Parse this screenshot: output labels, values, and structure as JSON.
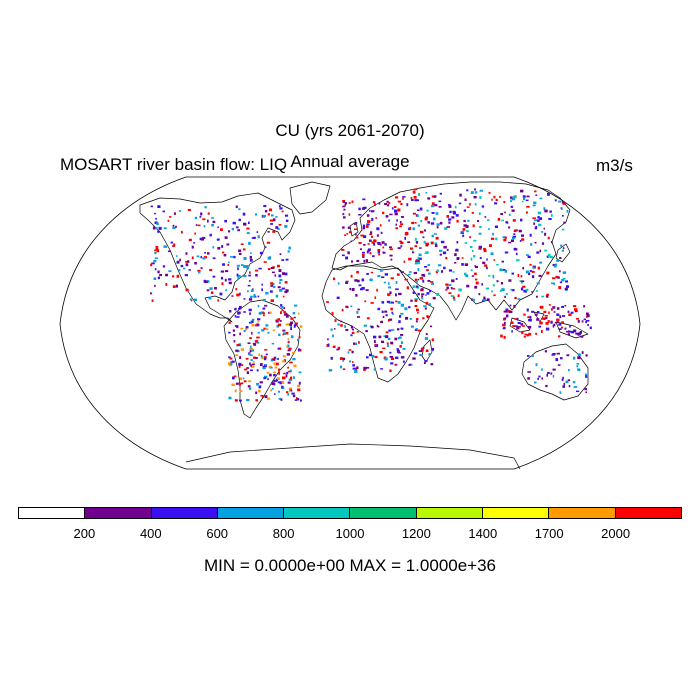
{
  "title": "CU (yrs 2061-2070)",
  "left_label": "MOSART river basin flow: LIQ",
  "subtitle": "Annual average",
  "units": "m3/s",
  "stats": "MIN = 0.0000e+00 MAX = 1.0000e+36",
  "colorbar": {
    "colors": [
      "#ffffff",
      "#700090",
      "#3a10f0",
      "#05a0e0",
      "#04c8c0",
      "#00c070",
      "#b8f800",
      "#ffff00",
      "#ff9a00",
      "#ff0000"
    ],
    "labels": [
      "200",
      "400",
      "600",
      "800",
      "1000",
      "1200",
      "1400",
      "1700",
      "2000"
    ]
  },
  "map": {
    "projection": "robinson",
    "regions": [
      {
        "name": "north-america",
        "colors": [
          "#3a10f0",
          "#ff0000",
          "#700090",
          "#05a0e0"
        ]
      },
      {
        "name": "south-america",
        "colors": [
          "#ff0000",
          "#700090",
          "#3a10f0",
          "#ff9a00",
          "#05a0e0"
        ]
      },
      {
        "name": "europe",
        "colors": [
          "#3a10f0",
          "#700090",
          "#ff0000"
        ]
      },
      {
        "name": "africa",
        "colors": [
          "#ff0000",
          "#700090",
          "#3a10f0",
          "#05a0e0"
        ]
      },
      {
        "name": "asia",
        "colors": [
          "#ff0000",
          "#3a10f0",
          "#700090",
          "#05a0e0",
          "#04c8c0"
        ]
      },
      {
        "name": "southeast-asia",
        "colors": [
          "#ff0000",
          "#700090",
          "#3a10f0"
        ]
      },
      {
        "name": "australia",
        "colors": [
          "#3a10f0",
          "#700090",
          "#05a0e0"
        ]
      }
    ]
  }
}
